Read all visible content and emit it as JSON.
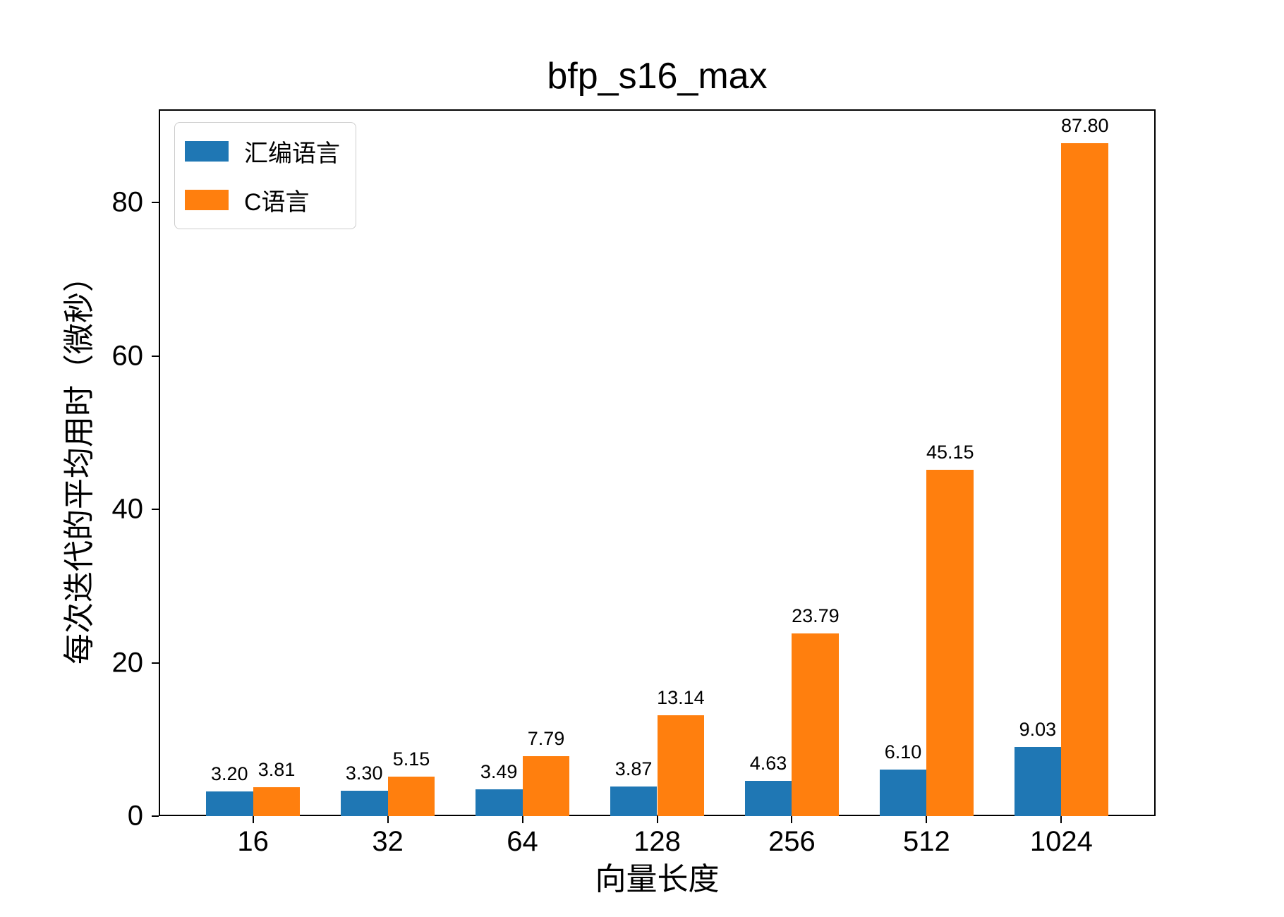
{
  "figure": {
    "title": "bfp_s16_max",
    "xlabel": "向量长度",
    "ylabel": "每次迭代的平均用时（微秒）"
  },
  "chart_data": {
    "type": "bar",
    "title": "bfp_s16_max",
    "xlabel": "向量长度",
    "ylabel": "每次迭代的平均用时（微秒）",
    "categories": [
      "16",
      "32",
      "64",
      "128",
      "256",
      "512",
      "1024"
    ],
    "series": [
      {
        "name": "汇编语言",
        "color": "#1f77b4",
        "values": [
          3.2,
          3.3,
          3.49,
          3.87,
          4.63,
          6.1,
          9.03
        ],
        "labels": [
          "3.20",
          "3.30",
          "3.49",
          "3.87",
          "4.63",
          "6.10",
          "9.03"
        ]
      },
      {
        "name": "C语言",
        "color": "#ff7f0e",
        "values": [
          3.81,
          5.15,
          7.79,
          13.14,
          23.79,
          45.15,
          87.8
        ],
        "labels": [
          "3.81",
          "5.15",
          "7.79",
          "13.14",
          "23.79",
          "45.15",
          "87.80"
        ]
      }
    ],
    "yticks": [
      0,
      20,
      40,
      60,
      80
    ],
    "ytick_labels": [
      "0",
      "20",
      "40",
      "60",
      "80"
    ],
    "ylim": [
      0,
      92.19
    ],
    "grid": false,
    "legend_position": "upper left",
    "bar_width_fraction": 0.35,
    "x_edge_padding": 0.7
  }
}
